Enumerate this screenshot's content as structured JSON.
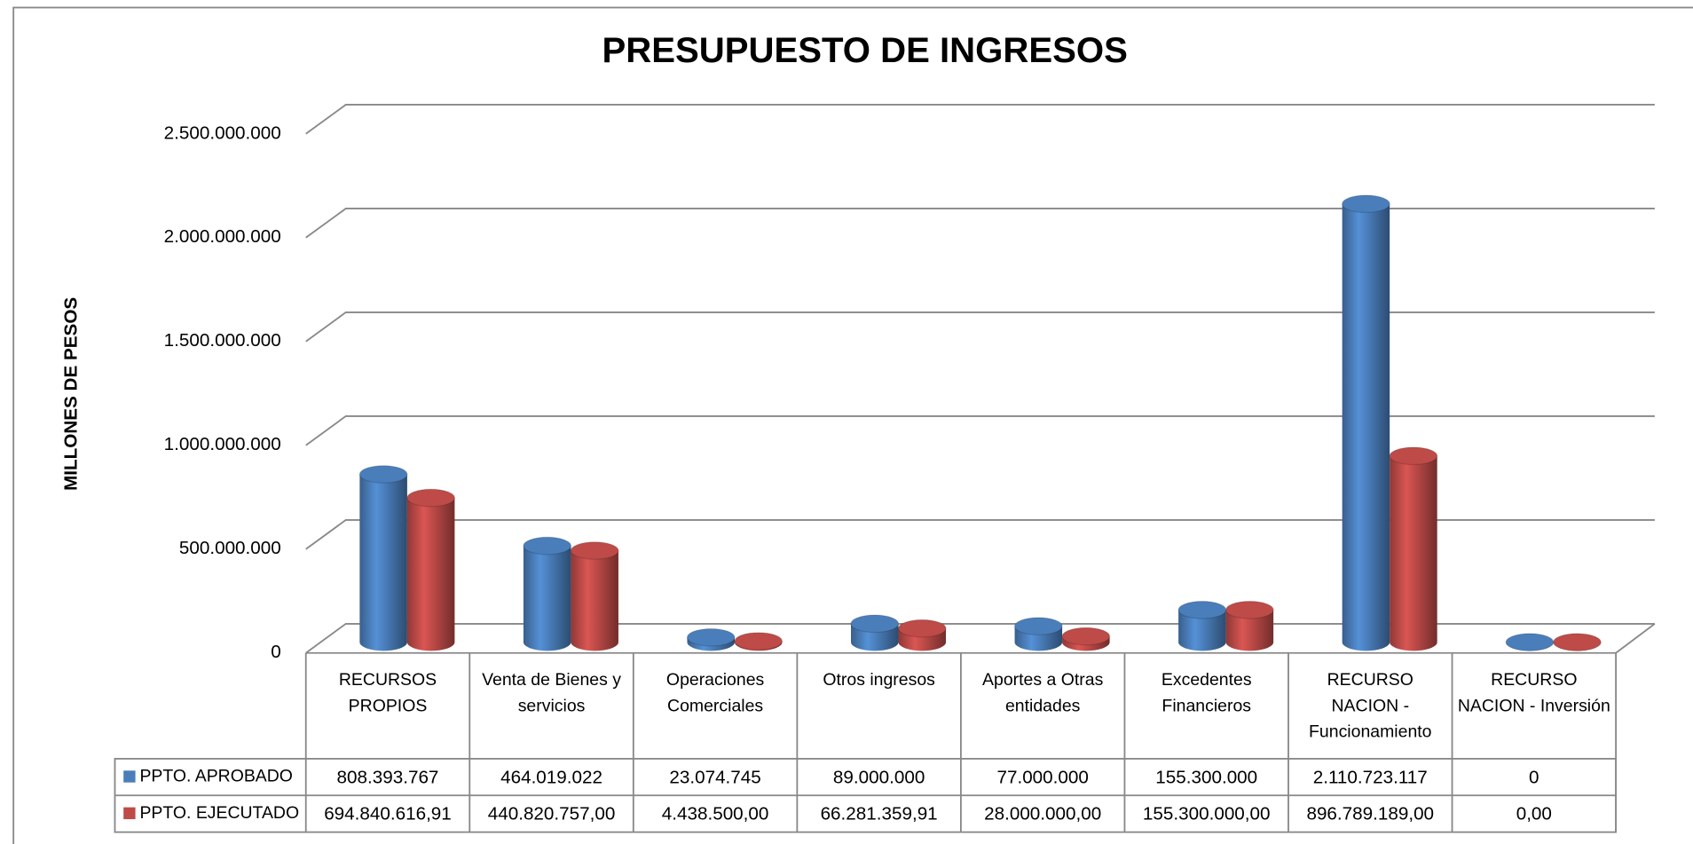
{
  "chart_data": {
    "type": "bar3d",
    "title": "PRESUPUESTO DE INGRESOS",
    "y_label": "MILLONES DE PESOS",
    "categories": [
      "RECURSOS PROPIOS",
      "Venta de Bienes y servicios",
      "Operaciones Comerciales",
      "Otros ingresos",
      "Aportes a Otras entidades",
      "Excedentes Financieros",
      "RECURSO NACION - Funcionamiento",
      "RECURSO NACION - Inversión"
    ],
    "series": [
      {
        "name": "PPTO. APROBADO",
        "color": "#4a7ebb",
        "values": [
          808393767,
          464019022,
          23074745,
          89000000,
          77000000,
          155300000,
          2110723117,
          0
        ],
        "value_labels": [
          "808.393.767",
          "464.019.022",
          "23.074.745",
          "89.000.000",
          "77.000.000",
          "155.300.000",
          "2.110.723.117",
          "0"
        ]
      },
      {
        "name": "PPTO. EJECUTADO",
        "color": "#be4b48",
        "values": [
          694840616.91,
          440820757.0,
          4438500.0,
          66281359.91,
          28000000.0,
          155300000.0,
          896789189.0,
          0.0
        ],
        "value_labels": [
          "694.840.616,91",
          "440.820.757,00",
          "4.438.500,00",
          "66.281.359,91",
          "28.000.000,00",
          "155.300.000,00",
          "896.789.189,00",
          "0,00"
        ]
      }
    ],
    "ylim": [
      0,
      2500000000
    ],
    "yticks": [
      0,
      {
        "value": 500000000,
        "label": "500.000.000"
      },
      {
        "value": 1000000000,
        "label": "1.000.000.000"
      },
      {
        "value": 1500000000,
        "label": "1.500.000.000"
      },
      {
        "value": 2000000000,
        "label": "2.000.000.000"
      },
      {
        "value": 2500000000,
        "label": "2.500.000.000"
      }
    ],
    "grid": true
  }
}
